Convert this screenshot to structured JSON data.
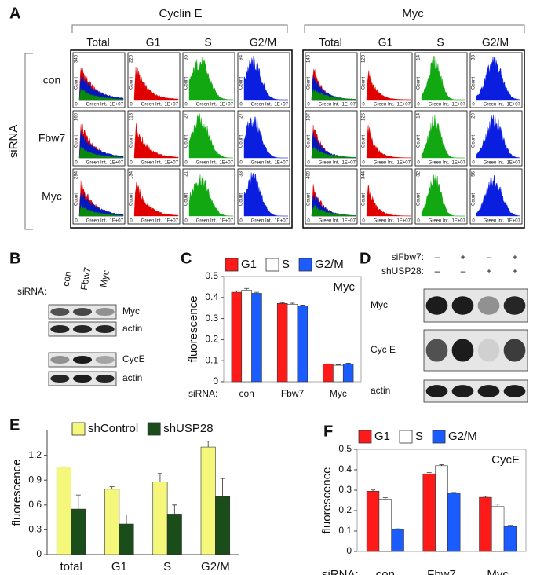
{
  "panel_letters": [
    "A",
    "B",
    "C",
    "D",
    "E",
    "F"
  ],
  "panel_a": {
    "groups": [
      "Cyclin E",
      "Myc"
    ],
    "columns": [
      "Total",
      "G1",
      "S",
      "G2/M"
    ],
    "side_label": "siRNA",
    "rows": [
      "con",
      "Fbw7",
      "Myc"
    ],
    "y_axis_label": "Count",
    "x_axis_label": "Green Int.",
    "zero_label": "0",
    "x_max_label": "1E+07",
    "count_max": [
      [
        346,
        226,
        35,
        94,
        148,
        128,
        14,
        33
      ],
      [
        160,
        118,
        27,
        27,
        137,
        126,
        14,
        29
      ],
      [
        294,
        134,
        21,
        33,
        409,
        344,
        32,
        56
      ]
    ]
  },
  "panel_b": {
    "prefix": "siRNA:",
    "lanes": [
      "con",
      "Fbw7",
      "Myc"
    ],
    "bands": [
      "Myc",
      "actin",
      "CycE",
      "actin"
    ]
  },
  "panel_d": {
    "conditions": [
      {
        "label": "siFbw7:",
        "states": [
          "–",
          "+",
          "–",
          "+"
        ]
      },
      {
        "label": "shUSP28:",
        "states": [
          "–",
          "–",
          "+",
          "+"
        ]
      }
    ],
    "bands": [
      "Myc",
      "Cyc E",
      "actin"
    ]
  },
  "chart_data": [
    {
      "type": "bar",
      "annotation": "Myc",
      "y_label": "fluorescence",
      "x_label": "siRNA:",
      "categories": [
        "con",
        "Fbw7",
        "Myc"
      ],
      "series": [
        {
          "name": "G1",
          "color": "#ff1a1a",
          "values": [
            0.425,
            0.372,
            0.083
          ],
          "errors": [
            0.007,
            0.004,
            0.002
          ]
        },
        {
          "name": "S",
          "color": "#ffffff",
          "values": [
            0.435,
            0.368,
            0.078
          ],
          "errors": [
            0.008,
            0.005,
            0.002
          ]
        },
        {
          "name": "G2/M",
          "color": "#1a5cff",
          "values": [
            0.42,
            0.36,
            0.085
          ],
          "errors": [
            0.005,
            0.004,
            0.003
          ]
        }
      ],
      "ylim": [
        0,
        0.5
      ],
      "yticks": [
        0,
        0.1,
        0.2,
        0.3,
        0.4,
        0.5
      ],
      "legend": "top"
    },
    {
      "type": "bar",
      "y_label": "fluorescence",
      "categories": [
        "total",
        "G1",
        "S",
        "G2/M"
      ],
      "series": [
        {
          "name": "shControl",
          "color": "#f4f77a",
          "values": [
            1.06,
            0.79,
            0.88,
            1.3
          ],
          "errors": [
            0,
            0.03,
            0.1,
            0.07
          ]
        },
        {
          "name": "shUSP28",
          "color": "#1b4d1b",
          "values": [
            0.55,
            0.37,
            0.49,
            0.7
          ],
          "errors": [
            0.17,
            0.11,
            0.11,
            0.22
          ]
        }
      ],
      "ylim": [
        0,
        1.5
      ],
      "yticks": [
        0,
        0.3,
        0.6,
        0.9,
        1.2
      ],
      "legend": "top"
    },
    {
      "type": "bar",
      "annotation": "CycE",
      "y_label": "fluorescence",
      "x_label": "siRNA:",
      "categories": [
        "con",
        "Fbw7",
        "Myc"
      ],
      "series": [
        {
          "name": "G1",
          "color": "#ff1a1a",
          "values": [
            0.295,
            0.38,
            0.265
          ],
          "errors": [
            0.006,
            0.006,
            0.005
          ]
        },
        {
          "name": "S",
          "color": "#ffffff",
          "values": [
            0.255,
            0.42,
            0.22
          ],
          "errors": [
            0.008,
            0.005,
            0.012
          ]
        },
        {
          "name": "G2/M",
          "color": "#1a5cff",
          "values": [
            0.108,
            0.285,
            0.123
          ],
          "errors": [
            0.003,
            0.004,
            0.005
          ]
        }
      ],
      "ylim": [
        0,
        0.5
      ],
      "yticks": [
        0,
        0.1,
        0.2,
        0.3,
        0.4,
        0.5
      ],
      "legend": "top"
    }
  ]
}
